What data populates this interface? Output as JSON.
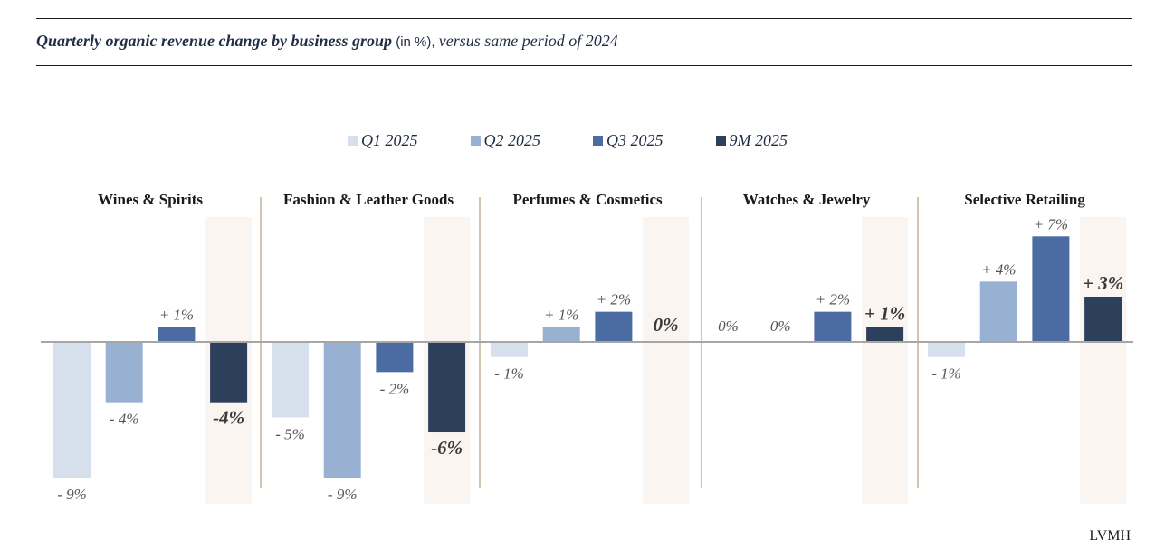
{
  "header": {
    "title_bold": "Quarterly organic revenue change by business group",
    "title_unit": " (in %), ",
    "title_rest": "versus same period of 2024"
  },
  "footer": {
    "brand": "LVMH"
  },
  "colors": {
    "Q1 2025": "#d6e0ec",
    "Q2 2025": "#98b0d1",
    "Q3 2025": "#4a6ca3",
    "9M 2025": "#2c405c",
    "highlight": "#fbf5f1",
    "separator": "#a88a5f",
    "axis": "#a6a6a6"
  },
  "chart_data": {
    "type": "bar",
    "title": "Quarterly organic revenue change by business group (in %), versus same period of 2024",
    "xlabel": "",
    "ylabel": "",
    "ylim": [
      -9,
      9
    ],
    "grid": false,
    "legend_position": "top-center",
    "categories": [
      "Wines & Spirits",
      "Fashion & Leather Goods",
      "Perfumes & Cosmetics",
      "Watches & Jewelry",
      "Selective Retailing"
    ],
    "series": [
      {
        "name": "Q1 2025",
        "values": [
          -9,
          -5,
          -1,
          0,
          -1
        ],
        "labels": [
          "- 9%",
          "- 5%",
          "- 1%",
          "0%",
          "- 1%"
        ]
      },
      {
        "name": "Q2 2025",
        "values": [
          -4,
          -9,
          1,
          0,
          4
        ],
        "labels": [
          "- 4%",
          "- 9%",
          "+ 1%",
          "0%",
          "+ 4%"
        ]
      },
      {
        "name": "Q3 2025",
        "values": [
          1,
          -2,
          2,
          2,
          7
        ],
        "labels": [
          "+ 1%",
          "- 2%",
          "+ 2%",
          "+ 2%",
          "+ 7%"
        ]
      },
      {
        "name": "9M 2025",
        "values": [
          -4,
          -6,
          0,
          1,
          3
        ],
        "labels": [
          "-4%",
          "-6%",
          "0%",
          "+ 1%",
          "+ 3%"
        ],
        "highlighted": true
      }
    ]
  }
}
